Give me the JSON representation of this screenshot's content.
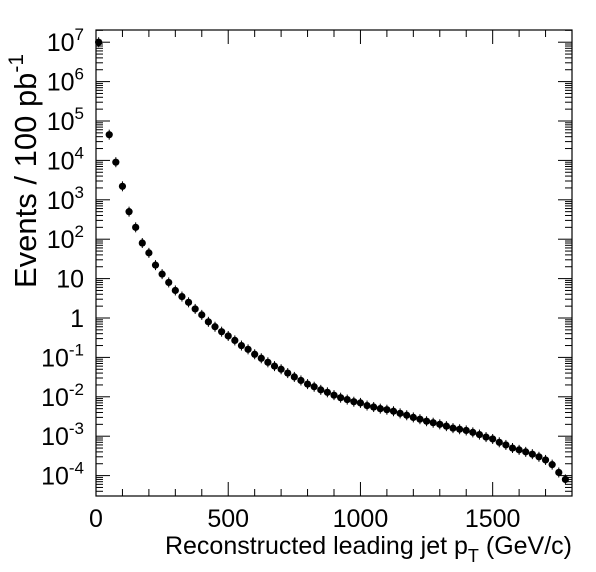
{
  "chart_data": {
    "type": "scatter",
    "xlabel_main": "Reconstructed leading jet p",
    "xlabel_sub": "T",
    "xlabel_units": " (GeV/c)",
    "ylabel_main": "Events / 100 pb",
    "ylabel_sup": "-1",
    "xlim": [
      0,
      1800
    ],
    "ylim": [
      3e-05,
      20000000.0
    ],
    "yscale": "log",
    "grid": false,
    "xticks": [
      {
        "value": 0,
        "label": "0"
      },
      {
        "value": 500,
        "label": "500"
      },
      {
        "value": 1000,
        "label": "1000"
      },
      {
        "value": 1500,
        "label": "1500"
      }
    ],
    "yticks": [
      {
        "value": 0.0001,
        "base": "10",
        "exp": "-4"
      },
      {
        "value": 0.001,
        "base": "10",
        "exp": "-3"
      },
      {
        "value": 0.01,
        "base": "10",
        "exp": "-2"
      },
      {
        "value": 0.1,
        "base": "10",
        "exp": "-1"
      },
      {
        "value": 1,
        "base": "1",
        "exp": ""
      },
      {
        "value": 10,
        "base": "10",
        "exp": ""
      },
      {
        "value": 100,
        "base": "10",
        "exp": "2"
      },
      {
        "value": 1000,
        "base": "10",
        "exp": "3"
      },
      {
        "value": 10000,
        "base": "10",
        "exp": "4"
      },
      {
        "value": 100000,
        "base": "10",
        "exp": "5"
      },
      {
        "value": 1000000,
        "base": "10",
        "exp": "6"
      },
      {
        "value": 10000000,
        "base": "10",
        "exp": "7"
      }
    ],
    "series": [
      {
        "marker_color": "#000000",
        "x": [
          10,
          30,
          50,
          75,
          100,
          125,
          150,
          175,
          200,
          225,
          250,
          275,
          300,
          325,
          350,
          375,
          400,
          425,
          450,
          475,
          500,
          525,
          550,
          575,
          600,
          625,
          650,
          675,
          700,
          725,
          750,
          775,
          800,
          825,
          850,
          875,
          900,
          925,
          950,
          975,
          1000,
          1025,
          1050,
          1075,
          1100,
          1125,
          1150,
          1175,
          1200,
          1225,
          1250,
          1275,
          1300,
          1325,
          1350,
          1375,
          1400,
          1425,
          1450,
          1475,
          1500,
          1525,
          1550,
          1575,
          1600,
          1625,
          1650,
          1675,
          1700,
          1725,
          1750,
          1775
        ],
        "y": [
          10000000,
          null,
          45000,
          9000,
          2200,
          500,
          200,
          80,
          45,
          22,
          13,
          8,
          5,
          3.5,
          2.5,
          1.7,
          1.2,
          0.8,
          0.6,
          0.45,
          0.35,
          0.27,
          0.2,
          0.16,
          0.12,
          0.095,
          0.075,
          0.06,
          0.05,
          0.04,
          0.032,
          0.026,
          0.021,
          0.018,
          0.015,
          0.013,
          0.011,
          0.0095,
          0.0085,
          0.0075,
          0.007,
          0.006,
          0.0055,
          0.005,
          0.0047,
          0.0043,
          0.0038,
          0.0034,
          0.003,
          0.0027,
          0.0024,
          0.0022,
          0.002,
          0.0018,
          0.0016,
          0.0015,
          0.0014,
          0.00125,
          0.0011,
          0.00095,
          0.00085,
          0.0007,
          0.0006,
          0.0005,
          0.00045,
          0.0004,
          0.00035,
          0.0003,
          0.00025,
          0.00019,
          0.00012,
          8e-05
        ]
      }
    ]
  }
}
